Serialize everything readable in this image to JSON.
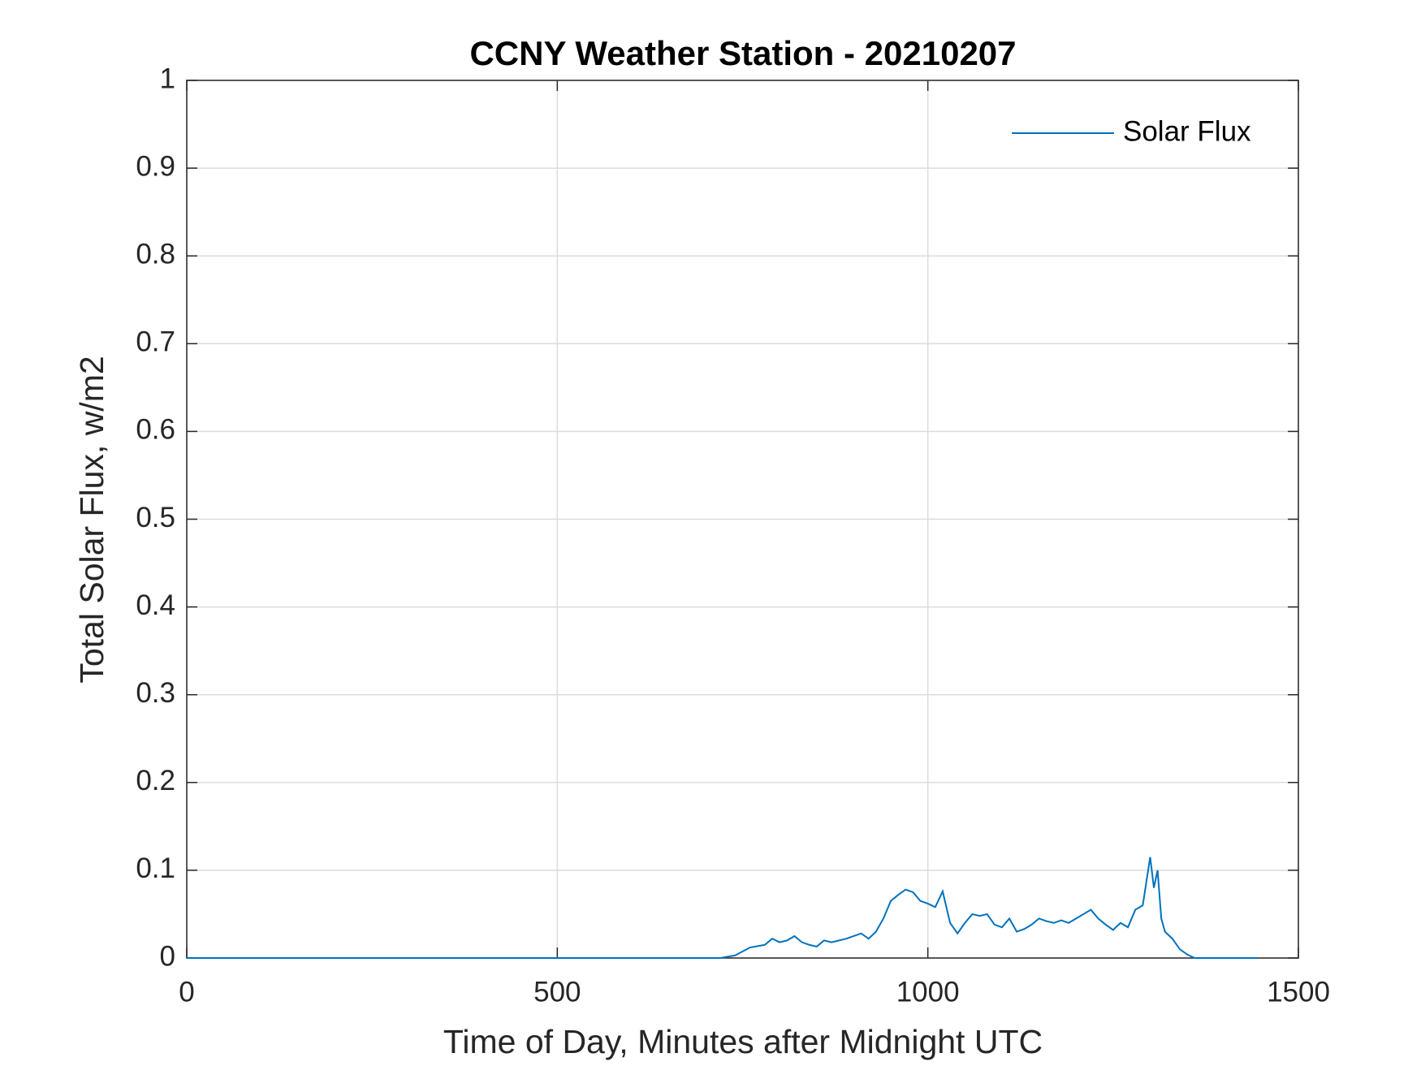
{
  "chart_data": {
    "type": "line",
    "title": "CCNY Weather Station - 20210207",
    "xlabel": "Time of Day, Minutes after Midnight UTC",
    "ylabel": "Total Solar Flux, w/m2",
    "x": [
      0,
      720,
      740,
      760,
      780,
      790,
      800,
      810,
      820,
      830,
      840,
      850,
      860,
      870,
      880,
      890,
      900,
      910,
      920,
      930,
      940,
      950,
      960,
      970,
      980,
      990,
      1000,
      1010,
      1020,
      1030,
      1040,
      1050,
      1060,
      1070,
      1080,
      1090,
      1100,
      1110,
      1120,
      1130,
      1140,
      1150,
      1160,
      1170,
      1180,
      1190,
      1200,
      1210,
      1220,
      1230,
      1240,
      1250,
      1260,
      1270,
      1280,
      1290,
      1300,
      1305,
      1310,
      1315,
      1320,
      1330,
      1340,
      1350,
      1360,
      1445
    ],
    "series": [
      {
        "name": "Solar Flux",
        "color": "#0072bd",
        "values": [
          0,
          0,
          0.003,
          0.012,
          0.015,
          0.022,
          0.018,
          0.02,
          0.025,
          0.018,
          0.015,
          0.013,
          0.02,
          0.018,
          0.02,
          0.022,
          0.025,
          0.028,
          0.022,
          0.03,
          0.045,
          0.065,
          0.072,
          0.078,
          0.075,
          0.065,
          0.062,
          0.058,
          0.076,
          0.04,
          0.028,
          0.04,
          0.05,
          0.048,
          0.05,
          0.038,
          0.035,
          0.045,
          0.03,
          0.033,
          0.038,
          0.045,
          0.042,
          0.04,
          0.043,
          0.04,
          0.045,
          0.05,
          0.055,
          0.045,
          0.038,
          0.032,
          0.04,
          0.035,
          0.055,
          0.06,
          0.115,
          0.08,
          0.1,
          0.045,
          0.03,
          0.022,
          0.01,
          0.004,
          0,
          0
        ]
      }
    ],
    "xlim": [
      0,
      1500
    ],
    "xticks": [
      0,
      500,
      1000,
      1500
    ],
    "ylim": [
      0,
      1
    ],
    "yticks": [
      0,
      0.1,
      0.2,
      0.3,
      0.4,
      0.5,
      0.6,
      0.7,
      0.8,
      0.9,
      1
    ],
    "grid": true,
    "legend": "northeast"
  }
}
